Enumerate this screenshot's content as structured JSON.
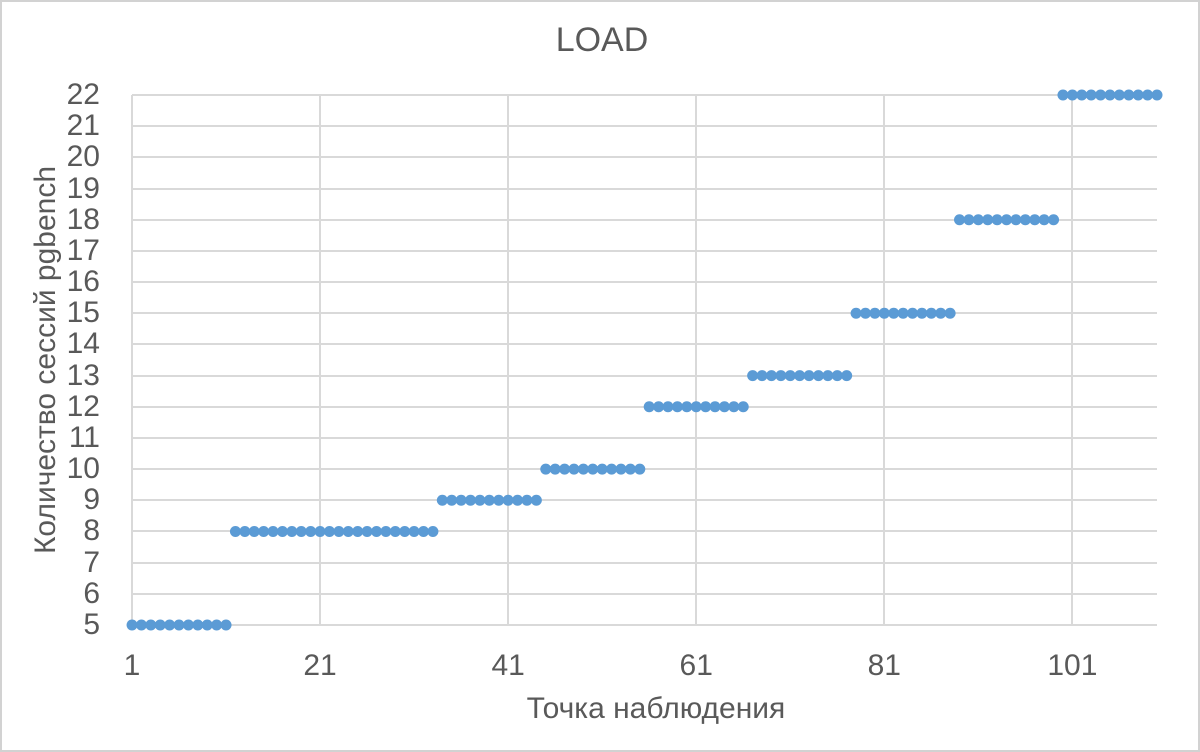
{
  "chart_data": {
    "type": "scatter",
    "title": "LOAD",
    "xlabel": "Точка наблюдения",
    "ylabel": "Количество сессий pgbench",
    "xlim": [
      1,
      110
    ],
    "ylim": [
      5,
      22
    ],
    "x_ticks": [
      1,
      21,
      41,
      61,
      81,
      101
    ],
    "y_ticks": [
      5,
      6,
      7,
      8,
      9,
      10,
      11,
      12,
      13,
      14,
      15,
      16,
      17,
      18,
      19,
      20,
      21,
      22
    ],
    "grid": true,
    "legend": "none",
    "series": [
      {
        "name": "LOAD",
        "marker_shape": "circle",
        "marker_diameter_px": 11,
        "color": "#5B9BD5",
        "segments": [
          {
            "y": 5,
            "x_from": 1,
            "x_to": 11
          },
          {
            "y": 8,
            "x_from": 12,
            "x_to": 33
          },
          {
            "y": 9,
            "x_from": 34,
            "x_to": 44
          },
          {
            "y": 10,
            "x_from": 45,
            "x_to": 55
          },
          {
            "y": 12,
            "x_from": 56,
            "x_to": 66
          },
          {
            "y": 13,
            "x_from": 67,
            "x_to": 77
          },
          {
            "y": 15,
            "x_from": 78,
            "x_to": 88
          },
          {
            "y": 18,
            "x_from": 89,
            "x_to": 99
          },
          {
            "y": 22,
            "x_from": 100,
            "x_to": 110
          }
        ]
      }
    ],
    "colors": {
      "marker": "#5B9BD5",
      "gridline": "#D9D9D9",
      "text": "#595959",
      "background": "#FFFFFF",
      "border": "#D2D2D2"
    }
  }
}
